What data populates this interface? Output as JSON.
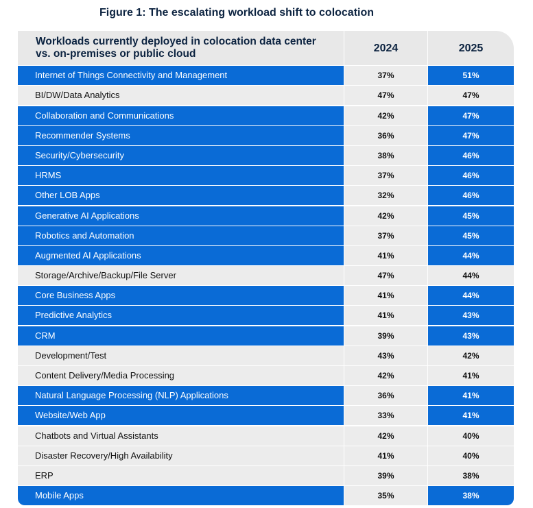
{
  "title": "Figure 1: The escalating workload shift to colocation",
  "colors": {
    "highlight": "#0a6bd6",
    "neutral": "#ececec",
    "header_text": "#0c2340"
  },
  "chart_data": {
    "type": "table",
    "header": {
      "label": "Workloads currently deployed in colocation data center vs. on-premises or public cloud",
      "years": [
        "2024",
        "2025"
      ]
    },
    "rows": [
      {
        "label": "Internet of Things Connectivity and Management",
        "v2024": "37%",
        "v2025": "51%",
        "highlight": true
      },
      {
        "label": "BI/DW/Data Analytics",
        "v2024": "47%",
        "v2025": "47%",
        "highlight": false
      },
      {
        "label": "Collaboration and Communications",
        "v2024": "42%",
        "v2025": "47%",
        "highlight": true
      },
      {
        "label": "Recommender Systems",
        "v2024": "36%",
        "v2025": "47%",
        "highlight": true
      },
      {
        "label": "Security/Cybersecurity",
        "v2024": "38%",
        "v2025": "46%",
        "highlight": true
      },
      {
        "label": "HRMS",
        "v2024": "37%",
        "v2025": "46%",
        "highlight": true
      },
      {
        "label": "Other LOB Apps",
        "v2024": "32%",
        "v2025": "46%",
        "highlight": true
      },
      {
        "label": "Generative AI Applications",
        "v2024": "42%",
        "v2025": "45%",
        "highlight": true
      },
      {
        "label": "Robotics and Automation",
        "v2024": "37%",
        "v2025": "45%",
        "highlight": true
      },
      {
        "label": "Augmented AI Applications",
        "v2024": "41%",
        "v2025": "44%",
        "highlight": true
      },
      {
        "label": "Storage/Archive/Backup/File Server",
        "v2024": "47%",
        "v2025": "44%",
        "highlight": false
      },
      {
        "label": "Core Business Apps",
        "v2024": "41%",
        "v2025": "44%",
        "highlight": true
      },
      {
        "label": "Predictive Analytics",
        "v2024": "41%",
        "v2025": "43%",
        "highlight": true
      },
      {
        "label": "CRM",
        "v2024": "39%",
        "v2025": "43%",
        "highlight": true
      },
      {
        "label": "Development/Test",
        "v2024": "43%",
        "v2025": "42%",
        "highlight": false
      },
      {
        "label": "Content Delivery/Media Processing",
        "v2024": "42%",
        "v2025": "41%",
        "highlight": false
      },
      {
        "label": "Natural Language Processing (NLP) Applications",
        "v2024": "36%",
        "v2025": "41%",
        "highlight": true
      },
      {
        "label": "Website/Web App",
        "v2024": "33%",
        "v2025": "41%",
        "highlight": true
      },
      {
        "label": "Chatbots and Virtual Assistants",
        "v2024": "42%",
        "v2025": "40%",
        "highlight": false
      },
      {
        "label": "Disaster Recovery/High Availability",
        "v2024": "41%",
        "v2025": "40%",
        "highlight": false
      },
      {
        "label": "ERP",
        "v2024": "39%",
        "v2025": "38%",
        "highlight": false
      },
      {
        "label": "Mobile Apps",
        "v2024": "35%",
        "v2025": "38%",
        "highlight": true
      }
    ]
  }
}
